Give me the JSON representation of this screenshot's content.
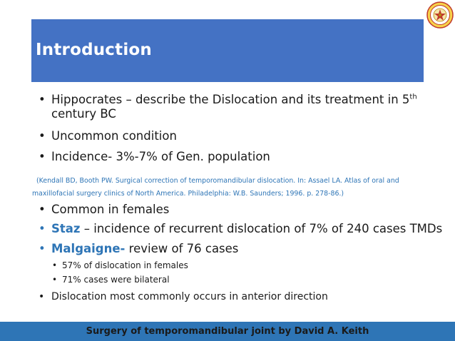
{
  "slide": {
    "title": "Introduction",
    "bullets": [
      {
        "pre": "Hippocrates –  describe the Dislocation and its treatment in 5",
        "sup": "th",
        "line2": "century BC"
      },
      {
        "text": "Uncommon condition"
      },
      {
        "text": "Incidence- 3%-7% of Gen. population"
      },
      {
        "text": "Common in females"
      },
      {
        "accent": "Staz",
        "rest": " – incidence of recurrent dislocation of 7% of 240 cases TMDs"
      },
      {
        "accent": "Malgaigne-",
        "rest": " review of 76 cases"
      },
      {
        "text": "Dislocation most commonly occurs in anterior direction"
      }
    ],
    "citation": {
      "line1": "(Kendall BD, Booth PW. Surgical correction of temporomandibular dislocation. In: Assael LA. Atlas of oral and",
      "line2": "maxillofacial surgery clinics of North America. Philadelphia: W.B. Saunders; 1996. p. 278-86.)"
    },
    "sub_bullets": [
      {
        "text": "57% of dislocation in females"
      },
      {
        "text": "71% cases were bilateral"
      }
    ],
    "footer": "Surgery of temporomandibular joint by David A. Keith"
  },
  "colors": {
    "title_bar": "#4472c4",
    "accent": "#2e75b6",
    "footer_bar": "#2e75b6"
  },
  "icons": {
    "logo": "institution-seal-icon"
  }
}
